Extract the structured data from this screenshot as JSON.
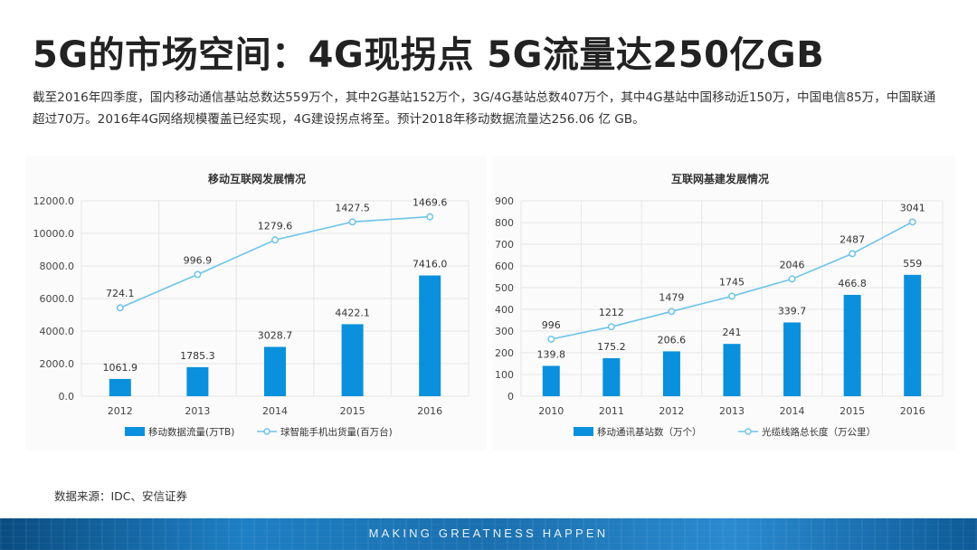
{
  "title": "5G的市场空间：4G现拐点 5G流量达250亿GB",
  "description": "截至2016年四季度，国内移动通信基站总数达559万个，其中2G基站152万个，3G/4G基站总数407万个，其中4G基站中国移动近150万，中国电信85万，中国联通超过70万。2016年4G网络规模覆盖已经实现，4G建设拐点将至。预计2018年移动数据流量达256.06 亿 GB。",
  "source": "数据来源：IDC、安信证券",
  "footer": {
    "slogan": "MAKING GREATNESS HAPPEN"
  },
  "colors": {
    "bar": "#0a90dc",
    "line": "#6ec3ea",
    "grid": "#e6e6e6"
  },
  "chart_data": [
    {
      "type": "bar",
      "title": "移动互联网发展情况",
      "categories": [
        "2012",
        "2013",
        "2014",
        "2015",
        "2016"
      ],
      "ylim": [
        0,
        12000
      ],
      "yticks": [
        "0.0",
        "2000.0",
        "4000.0",
        "6000.0",
        "8000.0",
        "10000.0",
        "12000.0"
      ],
      "bar_series": {
        "name": "移动数据流量(万TB)",
        "values": [
          1061.9,
          1785.3,
          3028.7,
          4422.1,
          7416.0
        ],
        "labels": [
          "1061.9",
          "1785.3",
          "3028.7",
          "4422.1",
          "7416.0"
        ]
      },
      "line_series": {
        "name": "球智能手机出货量(百万台)",
        "values": [
          724.1,
          996.9,
          1279.6,
          1427.5,
          1469.6
        ],
        "labels": [
          "724.1",
          "996.9",
          "1279.6",
          "1427.5",
          "1469.6"
        ],
        "plot_scale": 7.5
      }
    },
    {
      "type": "bar",
      "title": "互联网基建发展情况",
      "categories": [
        "2010",
        "2011",
        "2012",
        "2013",
        "2014",
        "2015",
        "2016"
      ],
      "ylim": [
        0,
        900
      ],
      "yticks": [
        "0",
        "100",
        "200",
        "300",
        "400",
        "500",
        "600",
        "700",
        "800",
        "900"
      ],
      "bar_series": {
        "name": "移动通讯基站数（万个）",
        "values": [
          139.8,
          175.2,
          206.6,
          241,
          339.7,
          466.8,
          559
        ],
        "labels": [
          "139.8",
          "175.2",
          "206.6",
          "241",
          "339.7",
          "466.8",
          "559"
        ]
      },
      "line_series": {
        "name": "光缆线路总长度（万公里）",
        "values": [
          996,
          1212,
          1479,
          1745,
          2046,
          2487,
          3041
        ],
        "labels": [
          "996",
          "1212",
          "1479",
          "1745",
          "2046",
          "2487",
          "3041"
        ],
        "plot_scale": 0.264
      }
    }
  ]
}
